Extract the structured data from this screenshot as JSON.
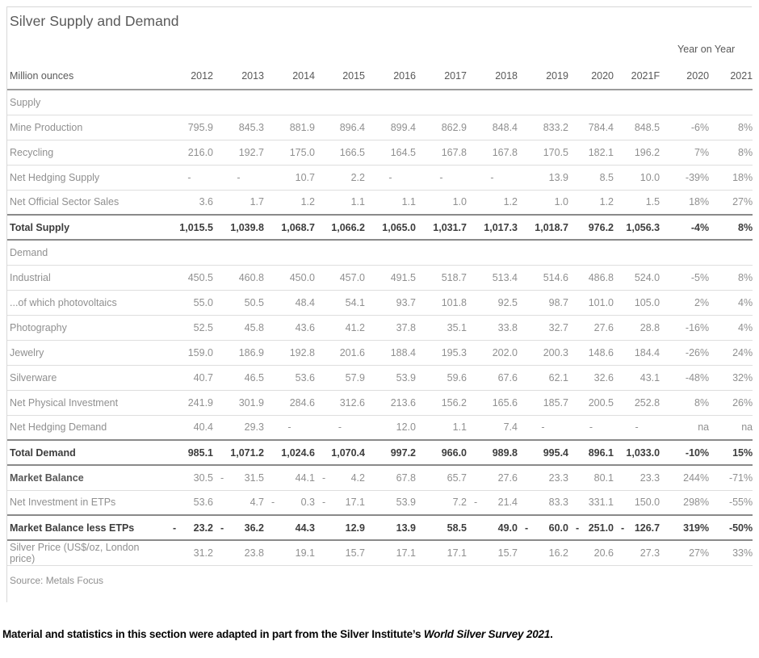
{
  "title": "Silver Supply and Demand",
  "table": {
    "unit_label": "Million ounces",
    "yoy_label": "Year on Year",
    "year_columns": [
      "2012",
      "2013",
      "2014",
      "2015",
      "2016",
      "2017",
      "2018",
      "2019",
      "2020",
      "2021F"
    ],
    "yoy_columns": [
      "2020",
      "2021"
    ],
    "rows": [
      {
        "label": "Supply",
        "type": "section",
        "divider": "thin"
      },
      {
        "label": "Mine Production",
        "type": "data",
        "divider": "thin",
        "values": [
          "795.9",
          "845.3",
          "881.9",
          "896.4",
          "899.4",
          "862.9",
          "848.4",
          "833.2",
          "784.4",
          "848.5"
        ],
        "yoy": [
          "-6%",
          "8%"
        ]
      },
      {
        "label": "Recycling",
        "type": "data",
        "divider": "thin",
        "values": [
          "216.0",
          "192.7",
          "175.0",
          "166.5",
          "164.5",
          "167.8",
          "167.8",
          "170.5",
          "182.1",
          "196.2"
        ],
        "yoy": [
          "7%",
          "8%"
        ]
      },
      {
        "label": "Net Hedging Supply",
        "type": "data",
        "divider": "thin",
        "values": [
          "-",
          "-",
          "10.7",
          "2.2",
          "-",
          "-",
          "-",
          "13.9",
          "8.5",
          "10.0"
        ],
        "yoy": [
          "-39%",
          "18%"
        ]
      },
      {
        "label": "Net Official Sector Sales",
        "type": "data",
        "divider": "thick",
        "values": [
          "3.6",
          "1.7",
          "1.2",
          "1.1",
          "1.1",
          "1.0",
          "1.2",
          "1.0",
          "1.2",
          "1.5"
        ],
        "yoy": [
          "18%",
          "27%"
        ]
      },
      {
        "label": "Total Supply",
        "type": "total",
        "divider": "thick",
        "values": [
          "1,015.5",
          "1,039.8",
          "1,068.7",
          "1,066.2",
          "1,065.0",
          "1,031.7",
          "1,017.3",
          "1,018.7",
          "976.2",
          "1,056.3"
        ],
        "yoy": [
          "-4%",
          "8%"
        ]
      },
      {
        "label": "Demand",
        "type": "section",
        "divider": "thin"
      },
      {
        "label": "Industrial",
        "type": "data",
        "divider": "thin",
        "values": [
          "450.5",
          "460.8",
          "450.0",
          "457.0",
          "491.5",
          "518.7",
          "513.4",
          "514.6",
          "486.8",
          "524.0"
        ],
        "yoy": [
          "-5%",
          "8%"
        ]
      },
      {
        "label": "...of which photovoltaics",
        "type": "data",
        "divider": "thin",
        "values": [
          "55.0",
          "50.5",
          "48.4",
          "54.1",
          "93.7",
          "101.8",
          "92.5",
          "98.7",
          "101.0",
          "105.0"
        ],
        "yoy": [
          "2%",
          "4%"
        ]
      },
      {
        "label": "Photography",
        "type": "data",
        "divider": "thin",
        "values": [
          "52.5",
          "45.8",
          "43.6",
          "41.2",
          "37.8",
          "35.1",
          "33.8",
          "32.7",
          "27.6",
          "28.8"
        ],
        "yoy": [
          "-16%",
          "4%"
        ]
      },
      {
        "label": "Jewelry",
        "type": "data",
        "divider": "thin",
        "values": [
          "159.0",
          "186.9",
          "192.8",
          "201.6",
          "188.4",
          "195.3",
          "202.0",
          "200.3",
          "148.6",
          "184.4"
        ],
        "yoy": [
          "-26%",
          "24%"
        ]
      },
      {
        "label": "Silverware",
        "type": "data",
        "divider": "thin",
        "values": [
          "40.7",
          "46.5",
          "53.6",
          "57.9",
          "53.9",
          "59.6",
          "67.6",
          "62.1",
          "32.6",
          "43.1"
        ],
        "yoy": [
          "-48%",
          "32%"
        ]
      },
      {
        "label": "Net Physical Investment",
        "type": "data",
        "divider": "thin",
        "values": [
          "241.9",
          "301.9",
          "284.6",
          "312.6",
          "213.6",
          "156.2",
          "165.6",
          "185.7",
          "200.5",
          "252.8"
        ],
        "yoy": [
          "8%",
          "26%"
        ]
      },
      {
        "label": "Net Hedging Demand",
        "type": "data",
        "divider": "thick",
        "values": [
          "40.4",
          "29.3",
          "-",
          "-",
          "12.0",
          "1.1",
          "7.4",
          "-",
          "-",
          "-"
        ],
        "yoy": [
          "na",
          "na"
        ]
      },
      {
        "label": "Total Demand",
        "type": "total",
        "divider": "thick",
        "values": [
          "985.1",
          "1,071.2",
          "1,024.6",
          "1,070.4",
          "997.2",
          "966.0",
          "989.8",
          "995.4",
          "896.1",
          "1,033.0"
        ],
        "yoy": [
          "-10%",
          "15%"
        ]
      },
      {
        "label": "Market Balance",
        "type": "data",
        "strong_label": true,
        "divider": "thin",
        "values": [
          "30.5",
          "-31.5",
          "44.1",
          "-4.2",
          "67.8",
          "65.7",
          "27.6",
          "23.3",
          "80.1",
          "23.3"
        ],
        "yoy": [
          "244%",
          "-71%"
        ]
      },
      {
        "label": "Net Investment in ETPs",
        "type": "data",
        "divider": "thick",
        "values": [
          "53.6",
          "4.7",
          "-0.3",
          "-17.1",
          "53.9",
          "7.2",
          "-21.4",
          "83.3",
          "331.1",
          "150.0"
        ],
        "yoy": [
          "298%",
          "-55%"
        ]
      },
      {
        "label": "Market Balance less ETPs",
        "type": "total",
        "divider": "thick",
        "values": [
          "-23.2",
          "-36.2",
          "44.3",
          "12.9",
          "13.9",
          "58.5",
          "49.0",
          "-60.0",
          "-251.0",
          "-126.7"
        ],
        "yoy": [
          "319%",
          "-50%"
        ]
      },
      {
        "label": "Silver Price (US$/oz, London price)",
        "type": "data",
        "divider": "thin",
        "values": [
          "31.2",
          "23.8",
          "19.1",
          "15.7",
          "17.1",
          "17.1",
          "15.7",
          "16.2",
          "20.6",
          "27.3"
        ],
        "yoy": [
          "27%",
          "33%"
        ]
      }
    ]
  },
  "source": "Source: Metals Focus",
  "footnote": {
    "prefix": "Material and statistics in this section were adapted in part from the Silver Institute’s ",
    "italic": "World Silver Survey 2021",
    "suffix": "."
  }
}
